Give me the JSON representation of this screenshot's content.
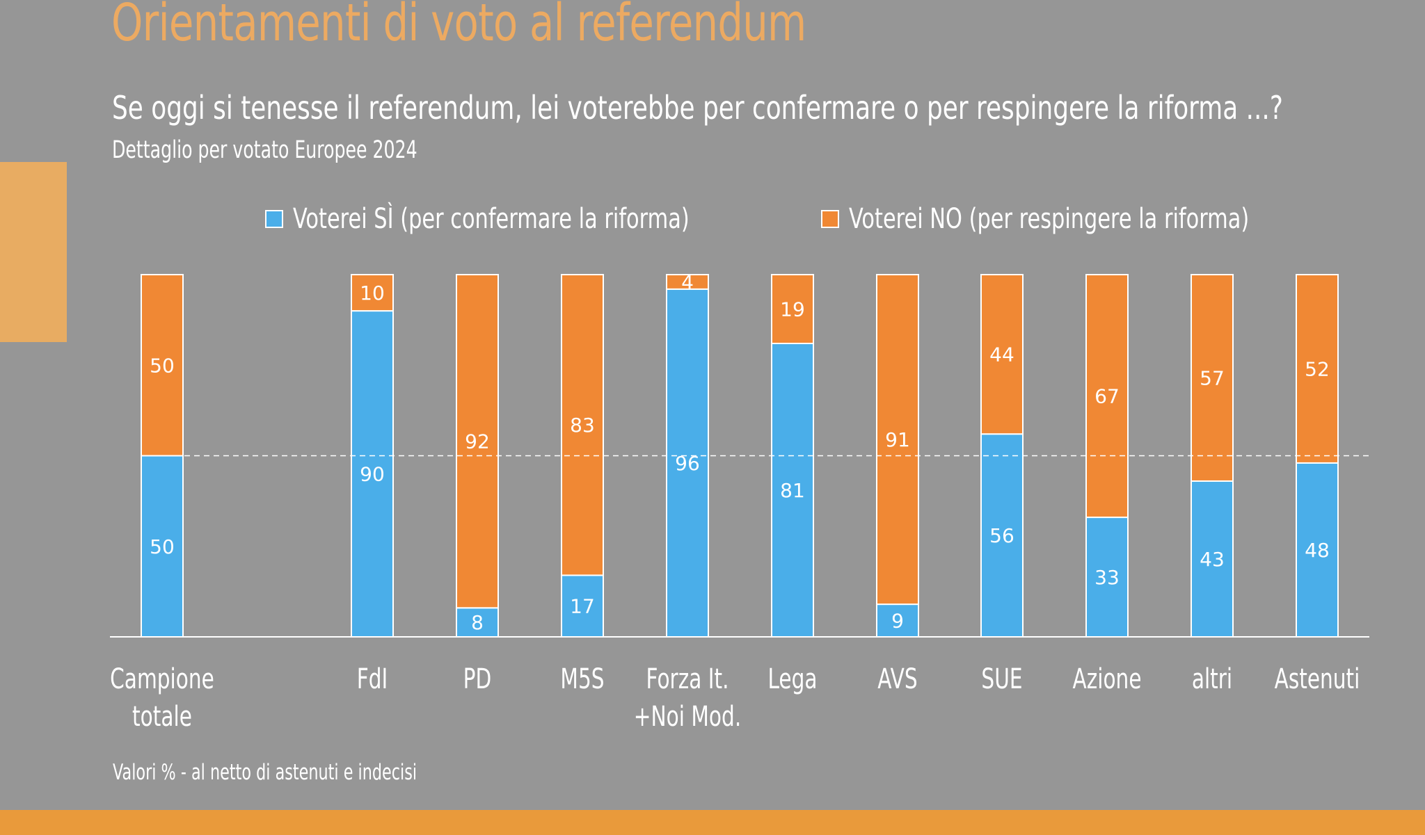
{
  "title": "Orientamenti di voto al referendum",
  "question": "Se oggi si tenesse il referendum, lei voterebbe per confermare o per respingere la riforma ...?",
  "subtitle": "Dettaglio per votato Europee 2024",
  "note": "Valori % - al netto di astenuti e indecisi",
  "colors": {
    "si": "#4aaee9",
    "no": "#f08834",
    "background": "#969696",
    "title": "#ecaa62",
    "band": "#e99a3b"
  },
  "chart_data": {
    "type": "bar",
    "stacked": true,
    "title": "Orientamenti di voto al referendum",
    "categories": [
      [
        "Campione",
        "totale"
      ],
      [
        "FdI"
      ],
      [
        "PD"
      ],
      [
        "M5S"
      ],
      [
        "Forza It.",
        "+Noi Mod."
      ],
      [
        "Lega"
      ],
      [
        "AVS"
      ],
      [
        "SUE"
      ],
      [
        "Azione"
      ],
      [
        "altri"
      ],
      [
        "Astenuti"
      ]
    ],
    "series": [
      {
        "name": "Voterei SÌ (per confermare la riforma)",
        "key": "si",
        "values": [
          50,
          90,
          8,
          17,
          96,
          81,
          9,
          56,
          33,
          43,
          48
        ]
      },
      {
        "name": "Voterei NO (per respingere la riforma)",
        "key": "no",
        "values": [
          50,
          10,
          92,
          83,
          4,
          19,
          91,
          44,
          67,
          57,
          52
        ]
      }
    ],
    "ylim": [
      0,
      100
    ],
    "reference_line": 50,
    "legend_position": "top",
    "xlabel": "",
    "ylabel": ""
  }
}
